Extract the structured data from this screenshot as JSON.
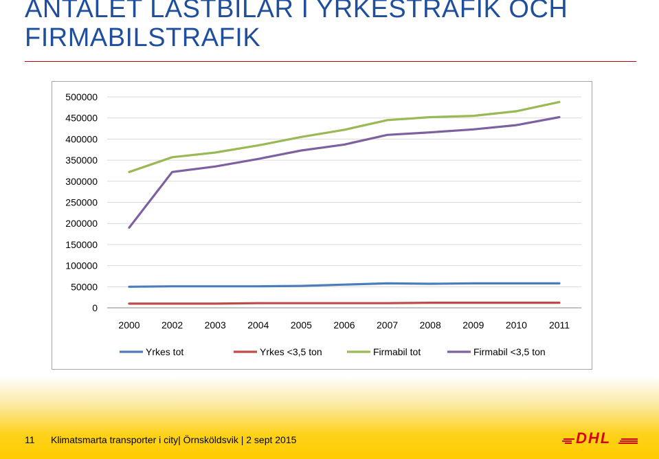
{
  "slide": {
    "title_line1": "ANTALET LASTBILAR I YRKESTRAFIK OCH",
    "title_line2": "FIRMABILSTRAFIK",
    "page_number": "11",
    "footer_caption": "Klimatsmarta transporter i city| Örnsköldsvik | 2 sept  2015",
    "logo_text": "DHL",
    "accent_color": "#c00000",
    "logo_color": "#d40511"
  },
  "chart_data": {
    "type": "line",
    "title": "",
    "xlabel": "",
    "ylabel": "",
    "categories": [
      "2000",
      "2002",
      "2003",
      "2004",
      "2005",
      "2006",
      "2007",
      "2008",
      "2009",
      "2010",
      "2011"
    ],
    "ylim": [
      0,
      500000
    ],
    "yticks": [
      0,
      50000,
      100000,
      150000,
      200000,
      250000,
      300000,
      350000,
      400000,
      450000,
      500000
    ],
    "ytick_labels": [
      "0",
      "50000",
      "100000",
      "150000",
      "200000",
      "250000",
      "300000",
      "350000",
      "400000",
      "450000",
      "500000"
    ],
    "grid": true,
    "legend_position": "bottom",
    "series": [
      {
        "name": "Yrkes tot",
        "color": "#4a7ebb",
        "values": [
          50000,
          51000,
          51000,
          51000,
          52000,
          55000,
          58000,
          57000,
          58000,
          58000,
          58000
        ]
      },
      {
        "name": "Yrkes <3,5 ton",
        "color": "#be4b48",
        "values": [
          10000,
          10000,
          10000,
          11000,
          11000,
          11000,
          11000,
          12000,
          12000,
          12000,
          12000
        ]
      },
      {
        "name": "Firmabil tot",
        "color": "#98b954",
        "values": [
          322000,
          357000,
          368000,
          385000,
          405000,
          422000,
          445000,
          452000,
          455000,
          466000,
          488000
        ]
      },
      {
        "name": "Firmabil <3,5 ton",
        "color": "#7d60a0",
        "values": [
          190000,
          322000,
          335000,
          353000,
          373000,
          387000,
          410000,
          416000,
          423000,
          433000,
          452000
        ]
      }
    ]
  }
}
